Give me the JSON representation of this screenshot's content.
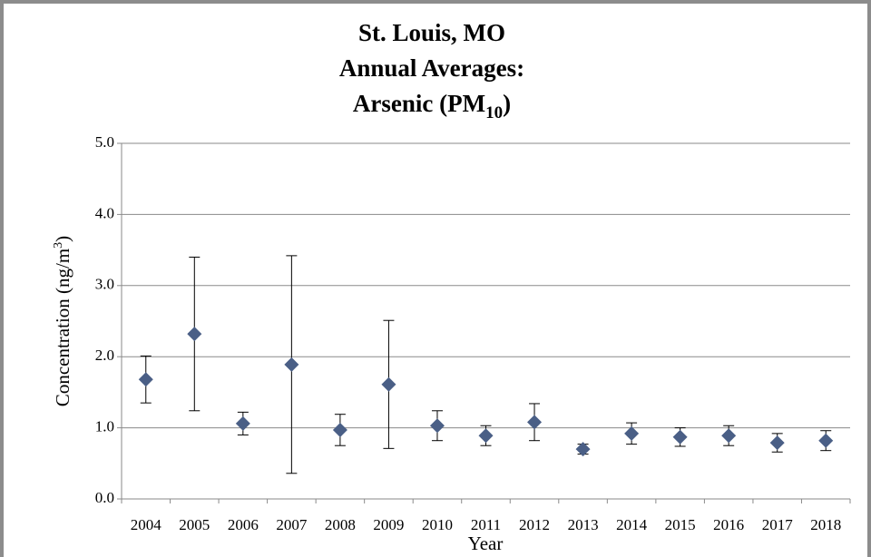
{
  "chart_data": {
    "type": "errorbar-scatter",
    "title": {
      "line1": "St. Louis, MO",
      "line2": "Annual Averages:",
      "line3": {
        "text": "Arsenic (PM",
        "sub": "10",
        "end": ")"
      }
    },
    "x_label": "Year",
    "y_label": {
      "text": "Concentration (ng/m",
      "sup": "3",
      "end": ")"
    },
    "categories": [
      "2004",
      "2005",
      "2006",
      "2007",
      "2008",
      "2009",
      "2010",
      "2011",
      "2012",
      "2013",
      "2014",
      "2015",
      "2016",
      "2017",
      "2018"
    ],
    "values": [
      1.68,
      2.32,
      1.06,
      1.89,
      0.97,
      1.61,
      1.03,
      0.89,
      1.08,
      0.7,
      0.92,
      0.87,
      0.89,
      0.79,
      0.82
    ],
    "errors": [
      0.33,
      1.08,
      0.16,
      1.53,
      0.22,
      0.9,
      0.21,
      0.14,
      0.26,
      0.07,
      0.15,
      0.13,
      0.14,
      0.13,
      0.14
    ],
    "color": "#4a5f86",
    "ylim": [
      0,
      5
    ],
    "yticks": [
      {
        "value": 0,
        "label": "0.0"
      },
      {
        "value": 1,
        "label": "1.0"
      },
      {
        "value": 2,
        "label": "2.0"
      },
      {
        "value": 3,
        "label": "3.0"
      },
      {
        "value": 4,
        "label": "4.0"
      },
      {
        "value": 5,
        "label": "5.0"
      }
    ],
    "grid": true
  }
}
